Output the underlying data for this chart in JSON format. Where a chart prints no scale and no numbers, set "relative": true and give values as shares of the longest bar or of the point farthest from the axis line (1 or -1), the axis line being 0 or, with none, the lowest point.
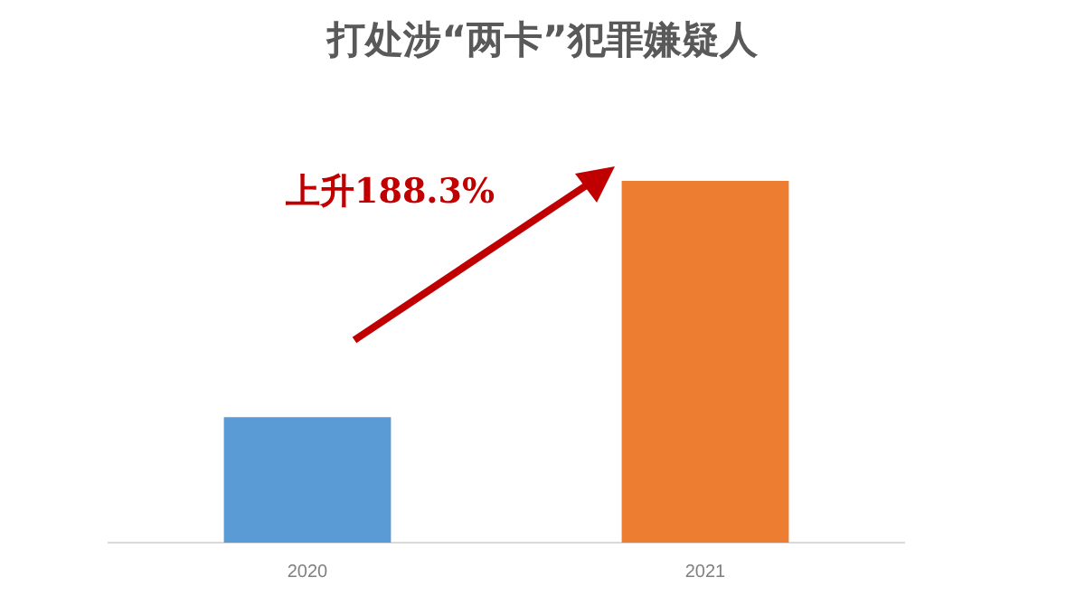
{
  "chart_data": {
    "type": "bar",
    "title": "打处涉“两卡”犯罪嫌疑人",
    "categories": [
      "2020",
      "2021"
    ],
    "relative": true,
    "values": [
      0.347,
      1
    ],
    "colors": [
      "#5b9bd5",
      "#ed7d31"
    ],
    "annotations": [
      "上升188.3%"
    ],
    "grid": false,
    "legend": false
  }
}
